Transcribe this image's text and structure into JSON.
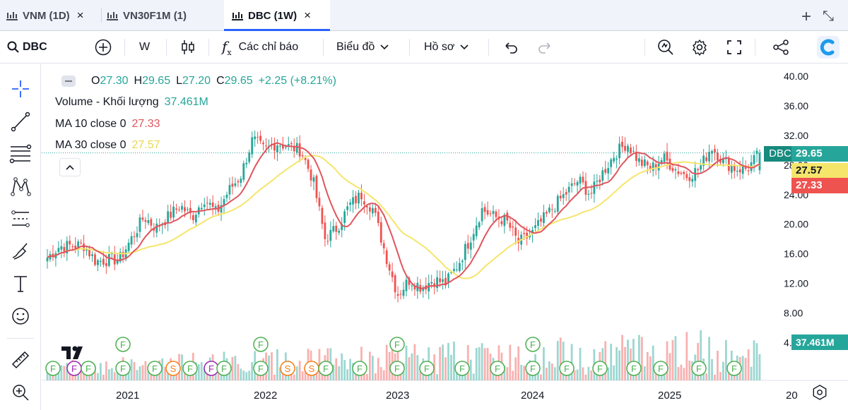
{
  "tabs": [
    {
      "label": "VNM (1D)",
      "close": "×"
    },
    {
      "label": "VN30F1M (1)",
      "close": "×"
    },
    {
      "label": "DBC (1W)",
      "close": "×"
    }
  ],
  "tabbar_actions": {
    "add": "+",
    "expand": "⤡"
  },
  "toolbar": {
    "symbol": "DBC",
    "interval": "W",
    "indicators_label": "Các chỉ báo",
    "chart_type_label": "Biểu đồ",
    "profile_label": "Hồ sơ"
  },
  "legend": {
    "open_label": "O",
    "open": "27.30",
    "high_label": "H",
    "high": "29.65",
    "low_label": "L",
    "low": "27.20",
    "close_label": "C",
    "close": "29.65",
    "change": "+2.25 (+8.21%)",
    "volume_label": "Volume - Khối lượng",
    "volume": "37.461M",
    "ma10_label": "MA 10 close 0",
    "ma10": "27.33",
    "ma30_label": "MA 30 close 0",
    "ma30": "27.57"
  },
  "badges": {
    "symbol": "DBC",
    "last": "29.65",
    "ma30": "27.57",
    "ma10": "27.33",
    "volume": "37.461M"
  },
  "colors": {
    "up": "#26a69a",
    "down": "#ef5350",
    "ma10": "#e0555d",
    "ma30": "#f5e56b",
    "accent": "#2962ff"
  },
  "chart_data": {
    "type": "candlestick",
    "symbol": "DBC",
    "interval": "1W",
    "y_ticks": [
      "40.00",
      "36.00",
      "32.00",
      "28.00",
      "24.00",
      "20.00",
      "16.00",
      "12.00",
      "8.00",
      "4.00"
    ],
    "x_ticks": [
      "2021",
      "2022",
      "2023",
      "2024",
      "2025",
      "20"
    ],
    "ylim": [
      2.5,
      40.5
    ],
    "series": [
      {
        "name": "MA 10 close 0",
        "last": 27.33
      },
      {
        "name": "MA 30 close 0",
        "last": 27.57
      },
      {
        "name": "Volume - Khối lượng",
        "last": "37.461M"
      }
    ],
    "last_bar": {
      "open": 27.3,
      "high": 29.65,
      "low": 27.2,
      "close": 29.65
    },
    "close_path": [
      [
        "2020-06",
        15.5
      ],
      [
        "2020-07",
        17.0
      ],
      [
        "2020-09",
        17.2
      ],
      [
        "2020-10",
        15.0
      ],
      [
        "2020-12",
        15.3
      ],
      [
        "2021-02",
        21.0
      ],
      [
        "2021-03",
        19.5
      ],
      [
        "2021-05",
        22.5
      ],
      [
        "2021-06",
        21.0
      ],
      [
        "2021-07",
        23.5
      ],
      [
        "2021-08",
        21.5
      ],
      [
        "2021-09",
        24.5
      ],
      [
        "2021-10",
        26.5
      ],
      [
        "2021-11",
        31.5
      ],
      [
        "2021-12",
        30.0
      ],
      [
        "2022-01",
        31.0
      ],
      [
        "2022-03",
        30.0
      ],
      [
        "2022-04",
        26.0
      ],
      [
        "2022-05",
        18.0
      ],
      [
        "2022-06",
        19.5
      ],
      [
        "2022-07",
        22.5
      ],
      [
        "2022-08",
        24.0
      ],
      [
        "2022-09",
        22.0
      ],
      [
        "2022-10",
        16.0
      ],
      [
        "2022-11",
        10.5
      ],
      [
        "2022-12",
        12.5
      ],
      [
        "2023-01",
        11.5
      ],
      [
        "2023-02",
        12.5
      ],
      [
        "2023-03",
        12.0
      ],
      [
        "2023-04",
        14.5
      ],
      [
        "2023-05",
        18.0
      ],
      [
        "2023-06",
        22.0
      ],
      [
        "2023-07",
        21.0
      ],
      [
        "2023-08",
        20.5
      ],
      [
        "2023-09",
        17.5
      ],
      [
        "2023-10",
        18.5
      ],
      [
        "2023-11",
        20.5
      ],
      [
        "2023-12",
        22.5
      ],
      [
        "2024-02",
        26.0
      ],
      [
        "2024-03",
        24.0
      ],
      [
        "2024-04",
        27.0
      ],
      [
        "2024-05",
        29.5
      ],
      [
        "2024-06",
        31.0
      ],
      [
        "2024-07",
        28.5
      ],
      [
        "2024-08",
        27.5
      ],
      [
        "2024-09",
        29.0
      ],
      [
        "2024-10",
        27.5
      ],
      [
        "2024-11",
        26.5
      ],
      [
        "2024-12",
        27.5
      ],
      [
        "2025-01",
        30.5
      ],
      [
        "2025-02",
        28.5
      ],
      [
        "2025-03",
        27.5
      ],
      [
        "2025-04",
        27.5
      ],
      [
        "2025-05",
        29.65
      ]
    ]
  }
}
